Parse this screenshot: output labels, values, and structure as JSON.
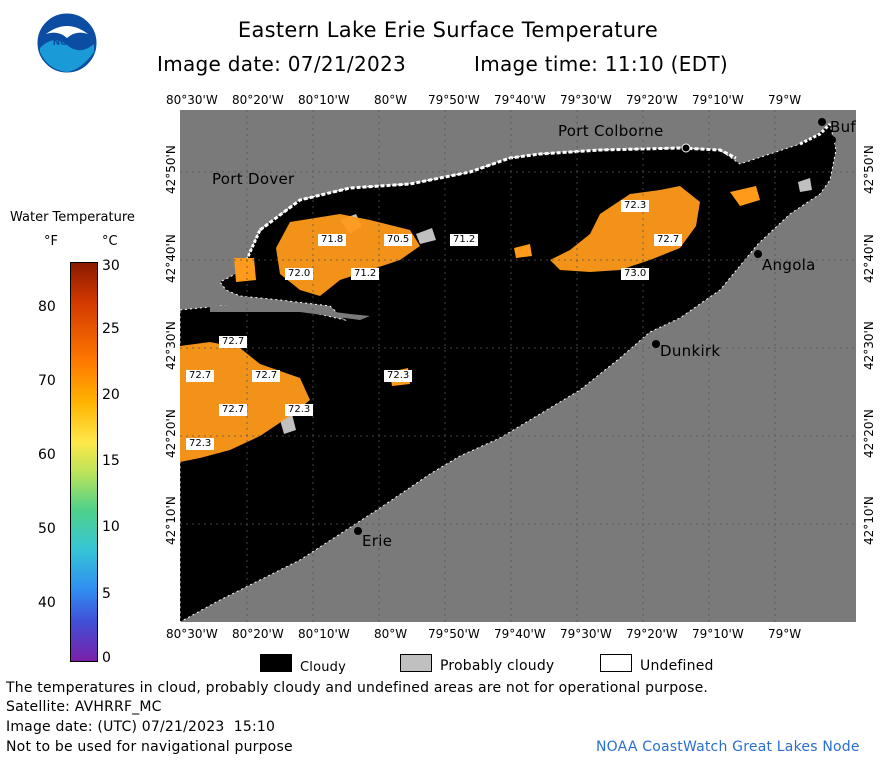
{
  "header": {
    "title": "Eastern Lake Erie Surface Temperature",
    "image_date": "Image date: 07/21/2023",
    "image_time": "Image time: 11:10 (EDT)"
  },
  "logo": {
    "text": "NOAA"
  },
  "colors": {
    "cloud": "#000000",
    "probably_cloudy": "#c0c0c0",
    "undefined": "#ffffff",
    "land": "#7a7a7a",
    "water_warm": "#ff9a1a"
  },
  "axes": {
    "lon_labels": [
      "80°30'W",
      "80°20'W",
      "80°10'W",
      "80°W",
      "79°50'W",
      "79°40'W",
      "79°30'W",
      "79°20'W",
      "79°10'W",
      "79°W"
    ],
    "lat_labels": [
      "42°50'N",
      "42°40'N",
      "42°30'N",
      "42°20'N",
      "42°10'N"
    ]
  },
  "places": {
    "port_colborne": "Port Colborne",
    "port_dover": "Port Dover",
    "angola": "Angola",
    "dunkirk": "Dunkirk",
    "erie": "Erie",
    "buffalo": "Buf"
  },
  "temperatures": [
    "72.3",
    "72.7",
    "73.0",
    "71.8",
    "70.5",
    "71.2",
    "72.0",
    "71.2",
    "72.7",
    "72.7",
    "72.7",
    "72.7",
    "72.3",
    "72.3",
    "72.3"
  ],
  "scale": {
    "title": "Water Temperature",
    "unit_f": "°F",
    "unit_c": "°C",
    "f_ticks": [
      "80",
      "70",
      "60",
      "50",
      "40"
    ],
    "c_ticks": [
      "30",
      "25",
      "20",
      "15",
      "10",
      "5",
      "0"
    ]
  },
  "legend": {
    "cloudy": "Cloudy",
    "probably_cloudy": "Probably cloudy",
    "undefined": "Undefined"
  },
  "footer": {
    "note": "The temperatures in cloud, probably cloudy and undefined areas are not for operational purpose.",
    "satellite": "Satellite: AVHRRF_MC",
    "utc_date": "Image date: (UTC) 07/21/2023  15:10",
    "nav_warning": "Not to be used for navigational purpose",
    "credit": "NOAA CoastWatch Great Lakes Node"
  }
}
